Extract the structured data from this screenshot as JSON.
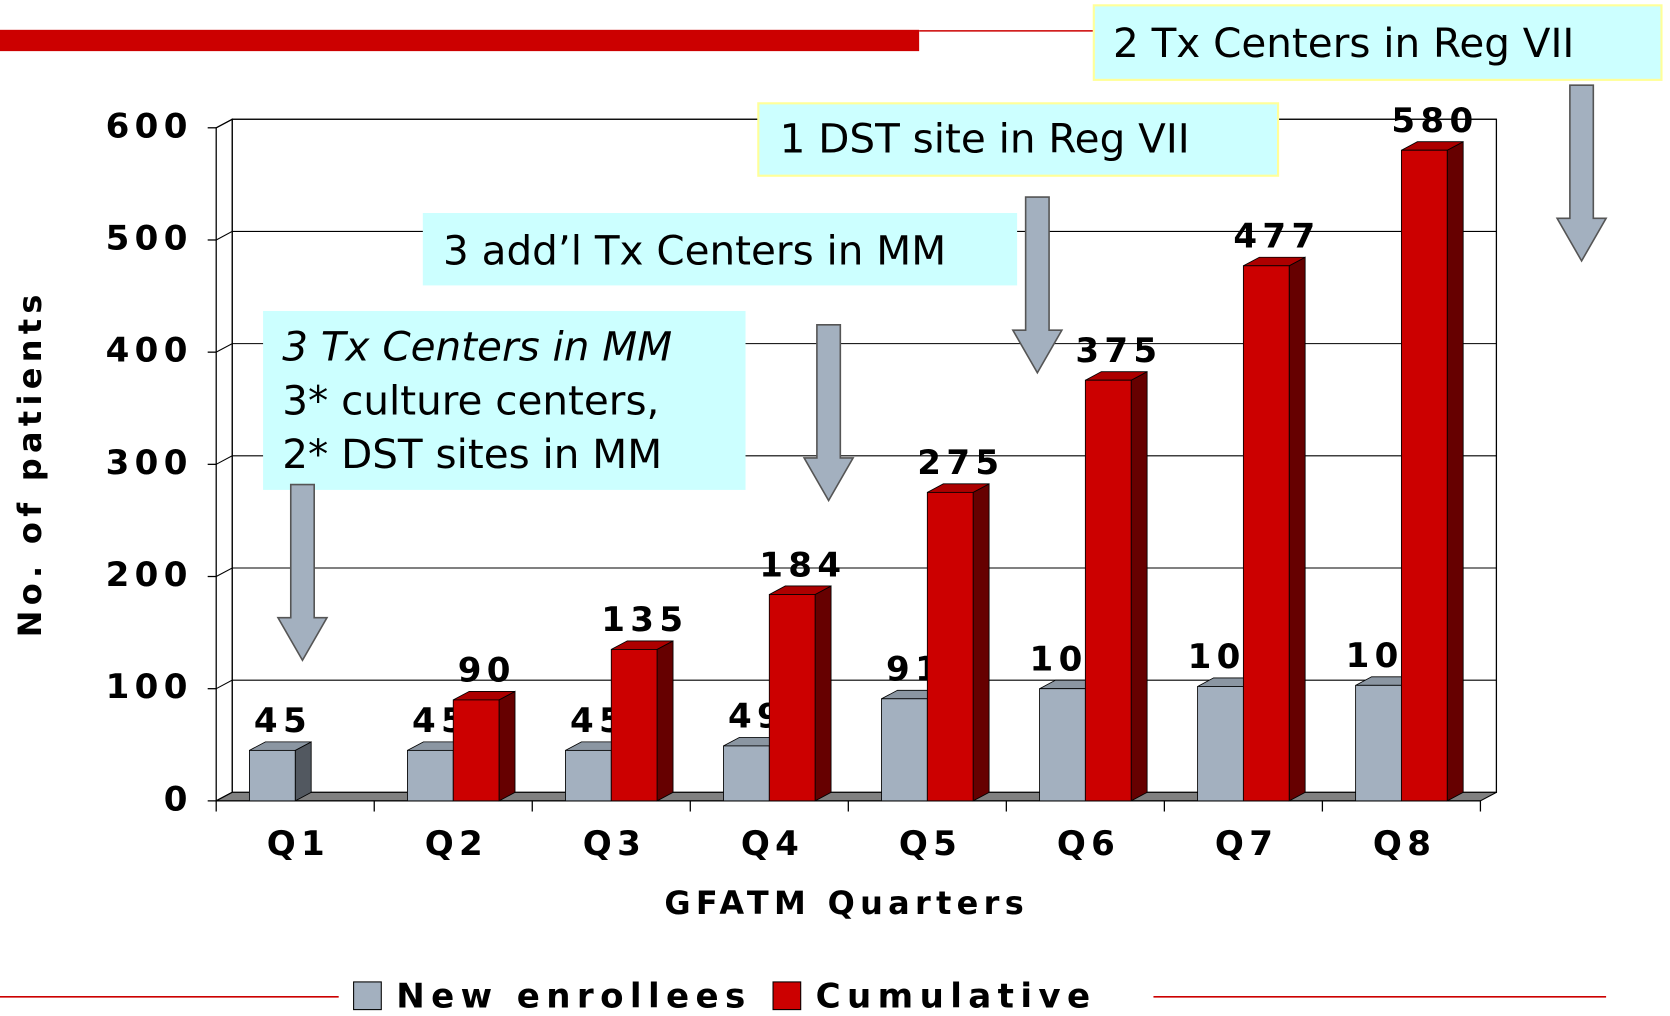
{
  "chart_data": {
    "type": "bar3d",
    "y_label": "No. of patients",
    "x_label": "GFATM Quarters",
    "categories": [
      "Q1",
      "Q2",
      "Q3",
      "Q4",
      "Q5",
      "Q6",
      "Q7",
      "Q8"
    ],
    "series": [
      {
        "name": "New enrollees",
        "color": "#a3b0bf",
        "values": [
          45,
          45,
          45,
          49,
          91,
          100,
          102,
          103
        ]
      },
      {
        "name": "Cumulative",
        "color": "#cc0000",
        "values": [
          null,
          90,
          135,
          184,
          275,
          375,
          477,
          580
        ]
      }
    ],
    "ylim": [
      0,
      600
    ],
    "yticks": [
      0,
      100,
      200,
      300,
      400,
      500,
      600
    ],
    "grid": true,
    "legend": "bottom",
    "annotations": [
      "2 Tx Centers in Reg VII",
      "1 DST site in Reg VII",
      "3 add’l Tx Centers in MM",
      "3 Tx Centers in MM",
      "3* culture centers,",
      "2* DST sites in MM"
    ]
  }
}
